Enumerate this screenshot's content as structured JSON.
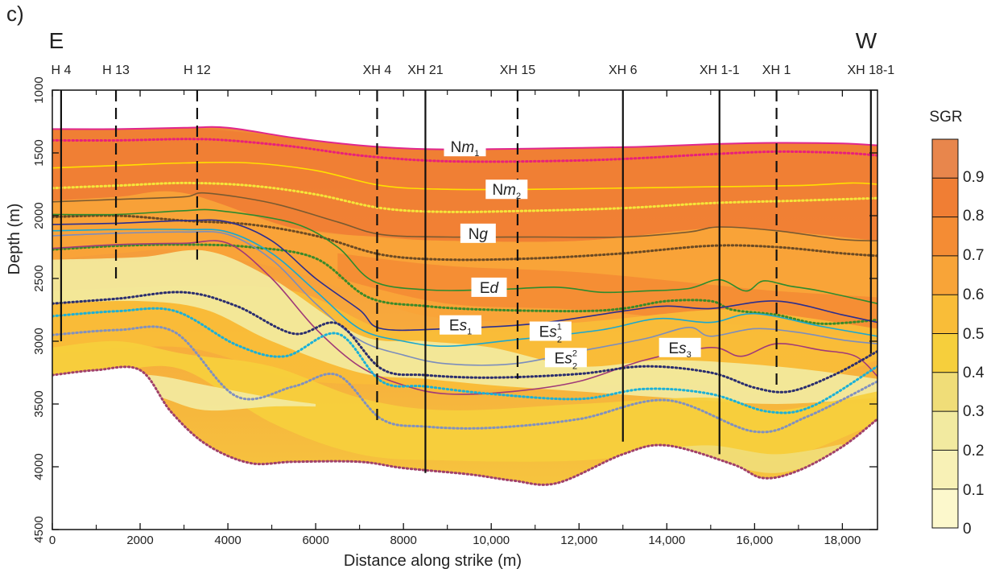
{
  "panel_label": "c)",
  "colors": {
    "seafloor": "#e0278c",
    "Nm2": "#ffe000",
    "Ng": "#7a5a30",
    "Ed": "#2e8b2e",
    "Es1": "#2b2e8f",
    "Es2_1": "#19a8d0",
    "Es2_2": "#7b8dbd",
    "Es3": "#a03a78",
    "Nm1_dot": "#e8207a",
    "Nm2_dot": "#f5e63a",
    "Ng_dot": "#6b4a24",
    "Ed_dot": "#3a8a2a",
    "Es1_dot": "#2b2e6f",
    "Es2_1_dot": "#1ab0d8",
    "Es2_2_dot": "#8090c0",
    "base_dot": "#a0406a"
  },
  "chart_data": {
    "type": "heatmap",
    "title": "",
    "direction_left": "E",
    "direction_right": "W",
    "xlabel": "Distance along strike (m)",
    "ylabel": "Depth (m)",
    "xlim": [
      0,
      18800
    ],
    "ylim": [
      1000,
      4500
    ],
    "y_inverted": true,
    "x_ticks": [
      0,
      2000,
      4000,
      6000,
      8000,
      10000,
      12000,
      14000,
      16000,
      18000
    ],
    "x_tick_labels": [
      "0",
      "2000",
      "4000",
      "6000",
      "8000",
      "10,000",
      "12,000",
      "14,000",
      "16,000",
      "18,000"
    ],
    "y_ticks": [
      1000,
      1500,
      2000,
      2500,
      3000,
      3500,
      4000,
      4500
    ],
    "y_tick_labels": [
      "1000",
      "1500",
      "2000",
      "2500",
      "3000",
      "3500",
      "4000",
      "4500"
    ],
    "colorbar": {
      "title": "SGR",
      "range": [
        0,
        1.0
      ],
      "stops": [
        {
          "value": 0.0,
          "color": "#fcf8cc"
        },
        {
          "value": 0.1,
          "color": "#f8f1b6"
        },
        {
          "value": 0.2,
          "color": "#f2eaa0"
        },
        {
          "value": 0.3,
          "color": "#f0dd78"
        },
        {
          "value": 0.4,
          "color": "#f6cf3c"
        },
        {
          "value": 0.5,
          "color": "#f9bd38"
        },
        {
          "value": 0.6,
          "color": "#f8a438"
        },
        {
          "value": 0.7,
          "color": "#f48c34"
        },
        {
          "value": 0.8,
          "color": "#f07e34"
        },
        {
          "value": 0.9,
          "color": "#e8864c"
        }
      ],
      "tick_labels": [
        "0",
        "0.1",
        "0.2",
        "0.3",
        "0.4",
        "0.5",
        "0.6",
        "0.7",
        "0.8",
        "0.9"
      ]
    },
    "wells": [
      {
        "name": "H 4",
        "x": 200,
        "bottom": 3000,
        "style": "solid"
      },
      {
        "name": "H 13",
        "x": 1450,
        "bottom": 2550,
        "style": "dashed"
      },
      {
        "name": "H 12",
        "x": 3300,
        "bottom": 2350,
        "style": "dashed"
      },
      {
        "name": "XH 4",
        "x": 7400,
        "bottom": 3650,
        "style": "dashed"
      },
      {
        "name": "XH 21",
        "x": 8500,
        "bottom": 4050,
        "style": "solid"
      },
      {
        "name": "XH 15",
        "x": 10600,
        "bottom": 3300,
        "style": "dashed"
      },
      {
        "name": "XH 6",
        "x": 13000,
        "bottom": 3800,
        "style": "solid"
      },
      {
        "name": "XH 1-1",
        "x": 15200,
        "bottom": 3900,
        "style": "solid"
      },
      {
        "name": "XH 1",
        "x": 16500,
        "bottom": 3350,
        "style": "dashed"
      },
      {
        "name": "XH 18-1",
        "x": 18650,
        "bottom": 3100,
        "style": "solid"
      }
    ],
    "formation_labels": [
      {
        "base": "N",
        "italic": "m",
        "sub": "1",
        "sup": "",
        "x": 9400,
        "depth": 1450
      },
      {
        "base": "N",
        "italic": "m",
        "sub": "2",
        "sup": "",
        "x": 10350,
        "depth": 1790
      },
      {
        "base": "N",
        "italic": "g",
        "sub": "",
        "sup": "",
        "x": 9700,
        "depth": 2140
      },
      {
        "base": "E",
        "italic": "d",
        "sub": "",
        "sup": "",
        "x": 9950,
        "depth": 2570
      },
      {
        "base": "E",
        "italic": "s",
        "sub": "1",
        "sup": "",
        "x": 9300,
        "depth": 2870
      },
      {
        "base": "E",
        "italic": "s",
        "sub": "2",
        "sup": "1",
        "x": 11350,
        "depth": 2920
      },
      {
        "base": "E",
        "italic": "s",
        "sub": "2",
        "sup": "2",
        "x": 11700,
        "depth": 3130
      },
      {
        "base": "E",
        "italic": "s",
        "sub": "3",
        "sup": "",
        "x": 14300,
        "depth": 3050
      }
    ],
    "color_bands": [
      {
        "value": 0.8,
        "x": [
          0,
          3000,
          5500,
          7500,
          9000,
          12000,
          15000,
          16500,
          18800
        ],
        "top": [
          1310,
          1300,
          1380,
          1450,
          1470,
          1450,
          1420,
          1420,
          1440
        ],
        "bottom": [
          2000,
          1980,
          2100,
          2180,
          2200,
          2200,
          2100,
          2120,
          2200
        ]
      },
      {
        "value": 0.6,
        "x": [
          0,
          1500,
          3000,
          5500,
          7500,
          9000,
          12000,
          15000,
          16500,
          18800
        ],
        "top": [
          1880,
          1850,
          1820,
          2100,
          2170,
          2200,
          2200,
          2100,
          2120,
          2200
        ],
        "bottom": [
          2350,
          2300,
          2280,
          2450,
          2700,
          2820,
          2850,
          2750,
          2780,
          2900
        ]
      },
      {
        "value": 0.75,
        "x": [
          6500,
          9000,
          12000,
          15000,
          16500,
          18800
        ],
        "top": [
          2300,
          2400,
          2450,
          2550,
          2600,
          2650
        ],
        "bottom": [
          2500,
          2700,
          2750,
          2850,
          2900,
          3000
        ]
      },
      {
        "value": 0.5,
        "x": [
          0,
          3000,
          5500,
          7500,
          9000,
          12000,
          15000,
          16500,
          18800
        ],
        "top": [
          2600,
          2560,
          2600,
          2900,
          2900,
          2850,
          2750,
          2780,
          2900
        ],
        "bottom": [
          3100,
          3050,
          3300,
          3350,
          3400,
          3350,
          3350,
          3420,
          3150
        ]
      },
      {
        "value": 0.2,
        "x": [
          0,
          2000,
          3500,
          5000,
          7000,
          8500,
          10000,
          12000,
          14000,
          16500,
          18800
        ],
        "top": [
          2350,
          2330,
          2280,
          2500,
          2950,
          3000,
          3050,
          3200,
          3150,
          3200,
          3300
        ],
        "bottom": [
          2700,
          2680,
          2750,
          3000,
          3250,
          3300,
          3350,
          3400,
          3450,
          3500,
          3450
        ]
      },
      {
        "value": 0.45,
        "x": [
          0,
          1500,
          3000,
          5000,
          7000,
          9000,
          12000,
          15000,
          16500,
          18800
        ],
        "top": [
          3050,
          3000,
          3100,
          3200,
          3450,
          3550,
          3500,
          3450,
          3550,
          3400
        ],
        "bottom": [
          3270,
          3230,
          3230,
          3650,
          3900,
          3950,
          3950,
          3850,
          3950,
          3650
        ]
      },
      {
        "value": 0.2,
        "x": [
          1500,
          2500,
          3500,
          5000,
          6000
        ],
        "top": [
          3250,
          3280,
          3350,
          3450,
          3500
        ],
        "bottom": [
          3350,
          3450,
          3550,
          3520,
          3520
        ]
      },
      {
        "value": 0.3,
        "x": [
          13500,
          15000,
          16500,
          18000
        ],
        "top": [
          3870,
          3830,
          3900,
          3820
        ],
        "bottom": [
          3950,
          3960,
          4050,
          3900
        ]
      }
    ],
    "horizons": [
      {
        "key": "seafloor",
        "style": "solid",
        "width": 2,
        "x": [
          0,
          1500,
          3000,
          4000,
          5500,
          7000,
          8500,
          10000,
          12000,
          13500,
          15000,
          16500,
          18000,
          18800
        ],
        "depth": [
          1310,
          1310,
          1300,
          1300,
          1380,
          1440,
          1470,
          1470,
          1460,
          1450,
          1430,
          1420,
          1425,
          1440
        ]
      },
      {
        "key": "Nm1_dot",
        "style": "dotted",
        "width": 3,
        "x": [
          0,
          1500,
          3000,
          4000,
          5500,
          7000,
          8500,
          10000,
          12000,
          13500,
          15000,
          16500,
          18000,
          18800
        ],
        "depth": [
          1400,
          1400,
          1390,
          1400,
          1450,
          1520,
          1560,
          1570,
          1560,
          1540,
          1510,
          1490,
          1500,
          1520
        ]
      },
      {
        "key": "Nm2",
        "style": "solid",
        "width": 1.6,
        "x": [
          0,
          1500,
          3000,
          4500,
          6000,
          7500,
          9000,
          11000,
          13000,
          15000,
          17000,
          18200,
          18800
        ],
        "depth": [
          1620,
          1600,
          1580,
          1580,
          1640,
          1760,
          1790,
          1790,
          1780,
          1770,
          1760,
          1740,
          1750
        ]
      },
      {
        "key": "Nm2_dot",
        "style": "dotted",
        "width": 3,
        "x": [
          0,
          1500,
          3000,
          4500,
          6000,
          7500,
          9000,
          11000,
          13000,
          15000,
          17000,
          18800
        ],
        "depth": [
          1780,
          1760,
          1740,
          1760,
          1830,
          1940,
          1970,
          1960,
          1940,
          1900,
          1880,
          1860
        ]
      },
      {
        "key": "Ng",
        "style": "solid",
        "width": 1.6,
        "x": [
          0,
          1500,
          3000,
          3500,
          5000,
          6500,
          7500,
          9000,
          11000,
          13000,
          14500,
          15200,
          16500,
          18000,
          18800
        ],
        "depth": [
          1890,
          1870,
          1850,
          1820,
          1900,
          2050,
          2150,
          2170,
          2170,
          2170,
          2130,
          2090,
          2120,
          2190,
          2200
        ]
      },
      {
        "key": "Ng_dot",
        "style": "dotted",
        "width": 3,
        "x": [
          0,
          1500,
          3000,
          4500,
          6000,
          7500,
          9000,
          11000,
          13000,
          15000,
          16500,
          18000,
          18800
        ],
        "depth": [
          2010,
          2000,
          2040,
          2070,
          2160,
          2310,
          2350,
          2340,
          2300,
          2240,
          2250,
          2300,
          2320
        ]
      },
      {
        "key": "Ed",
        "style": "solid",
        "width": 1.6,
        "x": [
          0,
          1500,
          3000,
          3800,
          5500,
          6500,
          7300,
          8500,
          10000,
          11500,
          12500,
          13500,
          14500,
          15200,
          15800,
          16200,
          16800,
          17500,
          18800
        ],
        "depth": [
          1990,
          1990,
          1960,
          1960,
          2060,
          2250,
          2520,
          2590,
          2590,
          2570,
          2610,
          2600,
          2580,
          2510,
          2600,
          2520,
          2560,
          2600,
          2700
        ]
      },
      {
        "key": "Ed_dot",
        "style": "dotted",
        "width": 3,
        "x": [
          0,
          1500,
          3000,
          4500,
          6000,
          7200,
          8500,
          10000,
          12000,
          13000,
          14000,
          15000,
          15500,
          16500,
          17500,
          18800
        ],
        "depth": [
          2270,
          2240,
          2230,
          2250,
          2340,
          2650,
          2720,
          2750,
          2760,
          2740,
          2680,
          2680,
          2750,
          2790,
          2860,
          2830
        ]
      },
      {
        "key": "Es1",
        "style": "solid",
        "width": 1.6,
        "x": [
          0,
          1500,
          3000,
          4000,
          5000,
          6000,
          7000,
          7500,
          9000,
          11000,
          13000,
          14000,
          15000,
          16500,
          18000,
          18800
        ],
        "depth": [
          2070,
          2060,
          2040,
          2050,
          2200,
          2500,
          2750,
          2900,
          2900,
          2860,
          2760,
          2720,
          2740,
          2680,
          2790,
          2850
        ]
      },
      {
        "key": "Es2_1",
        "style": "solid",
        "width": 1.6,
        "x": [
          0,
          1500,
          3000,
          4000,
          5000,
          6000,
          7000,
          8000,
          9000,
          10500,
          12500,
          13800,
          15000,
          16000,
          17500,
          18800
        ],
        "depth": [
          2120,
          2110,
          2110,
          2130,
          2300,
          2600,
          2900,
          3000,
          3040,
          2990,
          2910,
          2820,
          2850,
          2780,
          2880,
          2960
        ]
      },
      {
        "key": "Es2_2",
        "style": "solid",
        "width": 1.6,
        "x": [
          0,
          1500,
          3000,
          4000,
          5000,
          6000,
          7000,
          8000,
          9000,
          10500,
          12000,
          13500,
          14500,
          15000,
          16000,
          17000,
          18000,
          18800
        ],
        "depth": [
          2160,
          2140,
          2130,
          2150,
          2350,
          2700,
          2990,
          3110,
          3180,
          3180,
          3080,
          2980,
          2890,
          2960,
          2900,
          2930,
          2990,
          3020
        ]
      },
      {
        "key": "Es3",
        "style": "solid",
        "width": 1.6,
        "x": [
          0,
          1500,
          3000,
          4000,
          5000,
          6000,
          7000,
          8000,
          9000,
          10500,
          12000,
          13500,
          15000,
          15700,
          16500,
          17500,
          18300,
          18800
        ],
        "depth": [
          2260,
          2230,
          2220,
          2220,
          2500,
          2900,
          3200,
          3350,
          3420,
          3400,
          3320,
          3150,
          3050,
          3120,
          3020,
          3070,
          3120,
          3280
        ]
      },
      {
        "key": "Es1_dot",
        "style": "dotted",
        "width": 3,
        "x": [
          0,
          1500,
          3000,
          4200,
          5500,
          6500,
          7500,
          8500,
          10000,
          12000,
          13500,
          15000,
          16000,
          16800,
          17800,
          18800
        ],
        "depth": [
          2700,
          2660,
          2610,
          2720,
          2940,
          2860,
          3220,
          3270,
          3290,
          3260,
          3200,
          3250,
          3370,
          3400,
          3270,
          3080
        ]
      },
      {
        "key": "Es2_1_dot",
        "style": "dotted",
        "width": 3,
        "x": [
          0,
          1500,
          2800,
          4200,
          5300,
          6500,
          7500,
          8500,
          10000,
          12000,
          13500,
          15000,
          16300,
          17300,
          18800
        ],
        "depth": [
          2800,
          2760,
          2760,
          3030,
          3120,
          2940,
          3320,
          3360,
          3420,
          3460,
          3380,
          3420,
          3560,
          3520,
          3200
        ]
      },
      {
        "key": "Es2_2_dot",
        "style": "dotted",
        "width": 3,
        "x": [
          0,
          1500,
          2800,
          4200,
          5500,
          6500,
          7500,
          8500,
          10000,
          12000,
          14000,
          16000,
          17200,
          18800
        ],
        "depth": [
          2950,
          2910,
          2930,
          3440,
          3360,
          3270,
          3620,
          3680,
          3690,
          3620,
          3470,
          3720,
          3600,
          3320
        ]
      },
      {
        "key": "base_dot",
        "style": "dotted",
        "width": 3,
        "x": [
          0,
          1000,
          2000,
          2700,
          3500,
          4500,
          5500,
          7000,
          8000,
          9500,
          10500,
          11500,
          13000,
          14000,
          15500,
          16200,
          17000,
          18000,
          18800
        ],
        "depth": [
          3270,
          3230,
          3230,
          3560,
          3820,
          3970,
          3960,
          3960,
          4010,
          4060,
          4110,
          4130,
          3900,
          3830,
          3980,
          4090,
          4030,
          3840,
          3620
        ]
      }
    ]
  }
}
